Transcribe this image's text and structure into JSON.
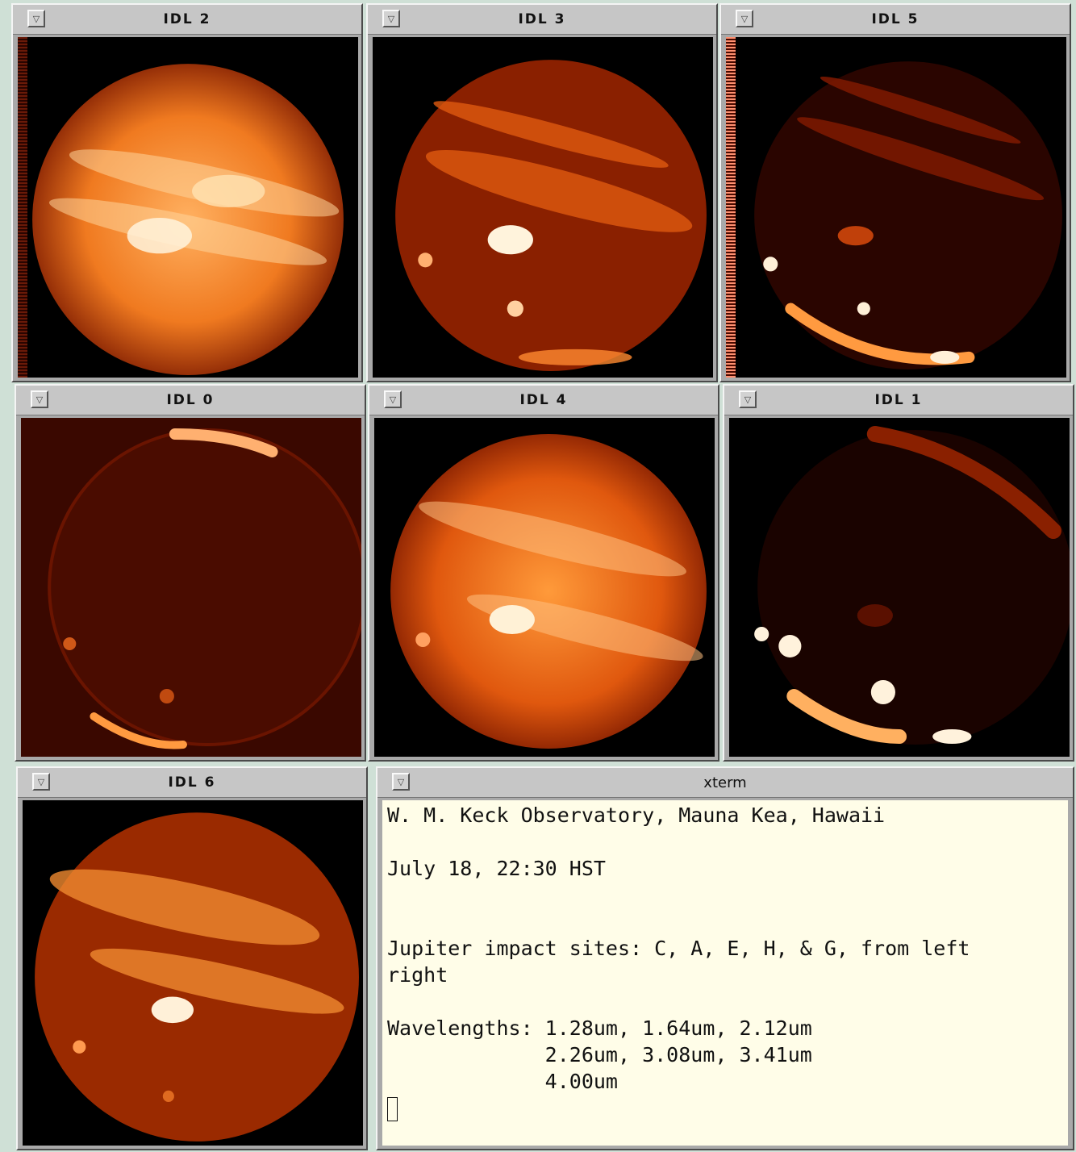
{
  "windows": [
    {
      "id": "idl2",
      "title": "IDL 2"
    },
    {
      "id": "idl3",
      "title": "IDL 3"
    },
    {
      "id": "idl5",
      "title": "IDL 5"
    },
    {
      "id": "idl0",
      "title": "IDL 0"
    },
    {
      "id": "idl4",
      "title": "IDL 4"
    },
    {
      "id": "idl1",
      "title": "IDL 1"
    },
    {
      "id": "idl6",
      "title": "IDL 6"
    }
  ],
  "xterm": {
    "title": "xterm",
    "lines": [
      "W. M. Keck Observatory, Mauna Kea, Hawaii",
      "",
      "July 18, 22:30 HST",
      "",
      "",
      "Jupiter impact sites: C, A, E, H, & G, from left",
      "right",
      "",
      "Wavelengths: 1.28um, 1.64um, 2.12um",
      "             2.26um, 3.08um, 3.41um",
      "             4.00um"
    ]
  },
  "icons": {
    "window_menu": "window-menu-icon"
  },
  "colors": {
    "planet_bright": "#ffe9c4",
    "planet_mid": "#f07a20",
    "planet_dark": "#7a1800",
    "xterm_bg": "#fffde8"
  }
}
